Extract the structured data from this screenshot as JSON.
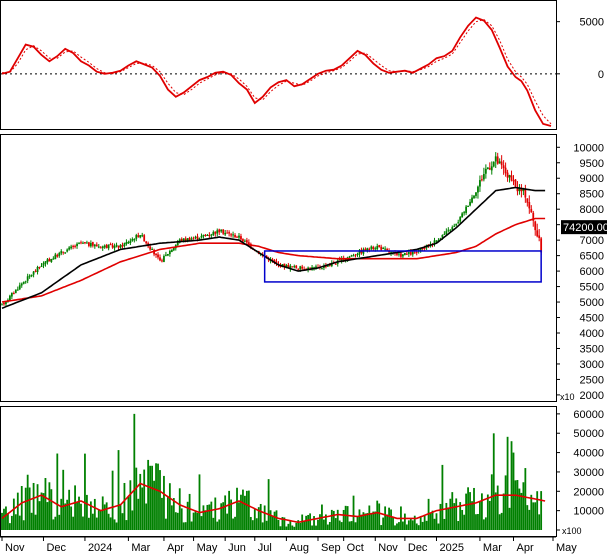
{
  "colors": {
    "up": "#008000",
    "down": "#e00000",
    "ma_fast": "#000000",
    "ma_slow": "#e00000",
    "oscillator": "#e00000",
    "oscillator_signal": "#e00000",
    "volume": "#008000",
    "volume_ma": "#e00000",
    "box": "#0000cc",
    "price_tag_bg": "#000000",
    "grid": "#000000"
  },
  "chart_data": [
    {
      "type": "line",
      "panel": "oscillator",
      "y_ticks": [
        "5000",
        "0"
      ],
      "ylim": [
        -5000,
        6500
      ],
      "zero_line": true,
      "x": [
        0,
        4,
        8,
        12,
        16,
        20,
        24,
        28,
        32,
        36,
        40,
        44,
        48,
        52,
        56,
        60,
        64,
        68,
        72,
        76,
        80,
        84,
        88,
        92,
        96,
        100,
        104,
        108,
        112,
        116,
        120,
        124,
        128,
        132,
        136,
        140,
        144,
        148,
        152,
        156,
        160,
        164,
        168,
        172,
        176,
        180,
        184,
        188,
        192,
        196,
        200,
        204,
        208,
        212,
        216,
        220,
        224,
        228,
        232,
        236,
        240,
        244,
        248,
        252,
        256,
        260,
        263,
        266,
        270,
        274,
        278
      ],
      "series": [
        {
          "values": [
            0,
            200,
            1500,
            2800,
            2600,
            1800,
            1200,
            1700,
            2400,
            2000,
            1200,
            800,
            200,
            0,
            100,
            300,
            800,
            1200,
            900,
            600,
            -200,
            -1500,
            -2200,
            -1800,
            -1200,
            -600,
            -300,
            100,
            200,
            -100,
            -900,
            -1500,
            -2800,
            -2200,
            -1300,
            -800,
            -600,
            -1200,
            -1000,
            -500,
            0,
            300,
            400,
            800,
            1500,
            2200,
            1800,
            1000,
            400,
            100,
            200,
            300,
            100,
            500,
            900,
            1500,
            1700,
            2200,
            3500,
            4600,
            5400,
            5100,
            4200,
            2500,
            700,
            -300,
            -700,
            -1600,
            -3500,
            -4800,
            -5000
          ]
        },
        {
          "values": [
            100,
            150,
            1000,
            2300,
            2700,
            2200,
            1500,
            1500,
            2100,
            2200,
            1600,
            1100,
            500,
            100,
            0,
            200,
            600,
            1000,
            1000,
            800,
            200,
            -900,
            -1800,
            -2000,
            -1500,
            -900,
            -500,
            -100,
            100,
            0,
            -500,
            -1200,
            -2300,
            -2500,
            -1700,
            -1100,
            -700,
            -900,
            -1100,
            -700,
            -200,
            100,
            300,
            600,
            1200,
            1900,
            2000,
            1400,
            800,
            300,
            200,
            300,
            200,
            400,
            700,
            1200,
            1500,
            1900,
            3000,
            4100,
            5000,
            5200,
            4600,
            3200,
            1400,
            200,
            -300,
            -1000,
            -2600,
            -4000,
            -4800
          ]
        }
      ]
    },
    {
      "type": "candlestick",
      "panel": "price",
      "y_ticks": [
        "10000",
        "9500",
        "9000",
        "8500",
        "8000",
        "7500",
        "7000",
        "6500",
        "6000",
        "5500",
        "5000",
        "4500",
        "4000",
        "3500",
        "3000",
        "2500",
        "2000"
      ],
      "ylim": [
        1900,
        10300
      ],
      "last_price": "74200.00",
      "unit": "x10",
      "price_anchors": {
        "x": [
          0,
          10,
          20,
          30,
          40,
          50,
          60,
          70,
          80,
          90,
          100,
          110,
          120,
          130,
          140,
          150,
          160,
          170,
          180,
          190,
          200,
          210,
          220,
          230,
          240,
          245,
          250,
          255,
          260,
          265,
          270,
          273
        ],
        "y": [
          4900,
          5600,
          6200,
          6600,
          6900,
          6800,
          6800,
          7200,
          6300,
          7000,
          7100,
          7300,
          7100,
          6600,
          6200,
          6100,
          6100,
          6300,
          6600,
          6800,
          6500,
          6600,
          7000,
          7500,
          8600,
          9300,
          9600,
          9200,
          8700,
          8500,
          7400,
          6700
        ]
      },
      "ma_fast": {
        "x": [
          0,
          20,
          40,
          60,
          80,
          100,
          110,
          120,
          130,
          140,
          150,
          160,
          170,
          180,
          190,
          200,
          210,
          220,
          230,
          240,
          250,
          260,
          270,
          275
        ],
        "y": [
          4800,
          5300,
          6200,
          6700,
          6900,
          7000,
          7100,
          7000,
          6600,
          6200,
          6000,
          6100,
          6300,
          6400,
          6500,
          6600,
          6700,
          6900,
          7400,
          8000,
          8600,
          8700,
          8600,
          8600
        ]
      },
      "ma_slow": {
        "x": [
          0,
          20,
          40,
          60,
          80,
          100,
          120,
          130,
          140,
          150,
          160,
          170,
          180,
          190,
          200,
          210,
          220,
          230,
          240,
          250,
          260,
          270,
          275
        ],
        "y": [
          5000,
          5200,
          5700,
          6300,
          6700,
          6900,
          6900,
          6800,
          6600,
          6500,
          6450,
          6400,
          6400,
          6400,
          6400,
          6400,
          6500,
          6600,
          6800,
          7200,
          7500,
          7700,
          7700
        ]
      },
      "box": {
        "x0": 133,
        "x1": 273,
        "y_top": 6650,
        "y_bottom": 5650
      }
    },
    {
      "type": "bar",
      "panel": "volume",
      "y_ticks": [
        "60000",
        "50000",
        "40000",
        "30000",
        "20000",
        "10000",
        "0"
      ],
      "ylim": [
        0,
        62000
      ],
      "unit": "x100",
      "volume_ma": {
        "x": [
          0,
          10,
          20,
          30,
          40,
          50,
          60,
          70,
          80,
          90,
          100,
          110,
          120,
          130,
          140,
          150,
          160,
          170,
          180,
          190,
          200,
          210,
          220,
          230,
          240,
          250,
          260,
          270,
          275
        ],
        "y": [
          6000,
          14000,
          18000,
          12000,
          15000,
          10000,
          13000,
          24000,
          20000,
          13000,
          9000,
          11000,
          15000,
          10000,
          6000,
          4000,
          6000,
          8000,
          7000,
          9000,
          6000,
          6000,
          10000,
          12000,
          14000,
          18000,
          18000,
          16000,
          15000
        ]
      }
    }
  ],
  "x_axis": {
    "labels": [
      "Nov",
      "Dec",
      "2024",
      "Mar",
      "Apr",
      "May",
      "Jun",
      "Jul",
      "Aug",
      "Sep",
      "Oct",
      "Nov",
      "Dec",
      "2025",
      "Mar",
      "Apr",
      "May"
    ],
    "index": [
      0,
      21,
      42,
      64,
      82,
      97,
      113,
      128,
      144,
      160,
      173,
      189,
      204,
      220,
      242,
      259,
      279
    ]
  }
}
